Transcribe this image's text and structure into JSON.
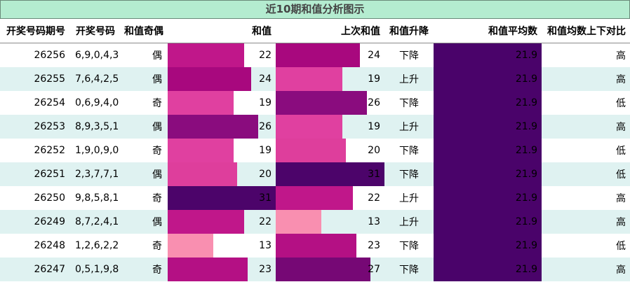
{
  "title": "近10期和值分析图示",
  "headers": {
    "issue": "开奖号码期号",
    "numbers": "开奖号码",
    "parity": "和值奇偶",
    "sum": "和值",
    "prev_sum": "上次和值",
    "trend": "和值升降",
    "avg": "和值平均数",
    "compare": "和值均数上下对比"
  },
  "scale": {
    "min": 0,
    "max": 31
  },
  "colors": {
    "13": "#f98fb0",
    "19": "#e040a0",
    "20": "#de3e9c",
    "22": "#c0178a",
    "23": "#b41084",
    "24": "#a8087e",
    "26": "#8a0c7e",
    "27": "#760875",
    "31": "#4c046a",
    "avg": "#4a036a"
  },
  "rows": [
    {
      "issue": "26256",
      "numbers": "6,9,0,4,3",
      "parity": "偶",
      "sum": 22,
      "prev_sum": 24,
      "trend": "下降",
      "avg": 21.9,
      "compare": "高"
    },
    {
      "issue": "26255",
      "numbers": "7,6,4,2,5",
      "parity": "偶",
      "sum": 24,
      "prev_sum": 19,
      "trend": "上升",
      "avg": 21.9,
      "compare": "高"
    },
    {
      "issue": "26254",
      "numbers": "0,6,9,4,0",
      "parity": "奇",
      "sum": 19,
      "prev_sum": 26,
      "trend": "下降",
      "avg": 21.9,
      "compare": "低"
    },
    {
      "issue": "26253",
      "numbers": "8,9,3,5,1",
      "parity": "偶",
      "sum": 26,
      "prev_sum": 19,
      "trend": "上升",
      "avg": 21.9,
      "compare": "高"
    },
    {
      "issue": "26252",
      "numbers": "1,9,0,9,0",
      "parity": "奇",
      "sum": 19,
      "prev_sum": 20,
      "trend": "下降",
      "avg": 21.9,
      "compare": "低"
    },
    {
      "issue": "26251",
      "numbers": "2,3,7,7,1",
      "parity": "偶",
      "sum": 20,
      "prev_sum": 31,
      "trend": "下降",
      "avg": 21.9,
      "compare": "低"
    },
    {
      "issue": "26250",
      "numbers": "9,8,5,8,1",
      "parity": "奇",
      "sum": 31,
      "prev_sum": 22,
      "trend": "上升",
      "avg": 21.9,
      "compare": "高"
    },
    {
      "issue": "26249",
      "numbers": "8,7,2,4,1",
      "parity": "偶",
      "sum": 22,
      "prev_sum": 13,
      "trend": "上升",
      "avg": 21.9,
      "compare": "高"
    },
    {
      "issue": "26248",
      "numbers": "1,2,6,2,2",
      "parity": "奇",
      "sum": 13,
      "prev_sum": 23,
      "trend": "下降",
      "avg": 21.9,
      "compare": "低"
    },
    {
      "issue": "26247",
      "numbers": "0,5,1,9,8",
      "parity": "奇",
      "sum": 23,
      "prev_sum": 27,
      "trend": "下降",
      "avg": 21.9,
      "compare": "高"
    }
  ]
}
